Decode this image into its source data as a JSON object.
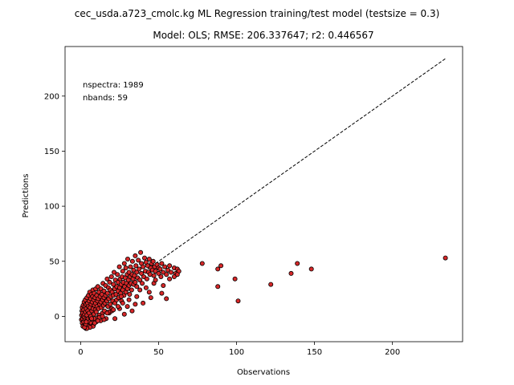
{
  "chart_data": {
    "type": "scatter",
    "suptitle": "cec_usda.a723_cmolc.kg ML Regression training/test model (testsize = 0.3)",
    "title": "Model: OLS; RMSE: 206.337647; r2: 0.446567",
    "xlabel": "Observations",
    "ylabel": "Predictions",
    "xlim": [
      -10,
      245
    ],
    "ylim": [
      -23,
      245
    ],
    "x_ticks": [
      0,
      50,
      100,
      150,
      200
    ],
    "y_ticks": [
      0,
      50,
      100,
      150,
      200
    ],
    "annotations": [
      "nspectra: 1989",
      "nbands: 59"
    ],
    "reference_line": {
      "from": [
        0,
        0
      ],
      "to": [
        234,
        234
      ],
      "style": "dashed",
      "color": "#000000"
    },
    "marker": {
      "fill": "#d62728",
      "edge": "#000000"
    },
    "grid": false,
    "legend": "none",
    "points": [
      [
        0.5,
        -3
      ],
      [
        0.6,
        1
      ],
      [
        0.8,
        5
      ],
      [
        1,
        -6
      ],
      [
        1,
        8
      ],
      [
        1.2,
        -2
      ],
      [
        1.3,
        3
      ],
      [
        1.5,
        -9
      ],
      [
        1.6,
        10
      ],
      [
        1.8,
        0
      ],
      [
        2,
        -5
      ],
      [
        2,
        6
      ],
      [
        2.2,
        13
      ],
      [
        2.4,
        -1
      ],
      [
        2.5,
        2
      ],
      [
        2.7,
        -8
      ],
      [
        2.8,
        9
      ],
      [
        3,
        15
      ],
      [
        3,
        -3
      ],
      [
        3.2,
        4
      ],
      [
        3.4,
        -11
      ],
      [
        3.5,
        11
      ],
      [
        3.6,
        7
      ],
      [
        3.8,
        -4
      ],
      [
        4,
        1
      ],
      [
        4,
        17
      ],
      [
        4.2,
        -7
      ],
      [
        4.4,
        12
      ],
      [
        4.6,
        5
      ],
      [
        4.8,
        -2
      ],
      [
        5,
        19
      ],
      [
        5,
        9
      ],
      [
        5.2,
        -9
      ],
      [
        5.4,
        3
      ],
      [
        5.5,
        14
      ],
      [
        5.7,
        -5
      ],
      [
        5.8,
        22
      ],
      [
        6,
        8
      ],
      [
        6.2,
        -1
      ],
      [
        6.4,
        16
      ],
      [
        6.5,
        0
      ],
      [
        6.7,
        11
      ],
      [
        6.8,
        -6
      ],
      [
        7,
        20
      ],
      [
        7.2,
        5
      ],
      [
        7.4,
        13
      ],
      [
        7.5,
        -3
      ],
      [
        7.7,
        18
      ],
      [
        7.8,
        24
      ],
      [
        8,
        7
      ],
      [
        8.2,
        -8
      ],
      [
        8.4,
        15
      ],
      [
        8.5,
        2
      ],
      [
        8.7,
        21
      ],
      [
        8.8,
        10
      ],
      [
        9,
        -2
      ],
      [
        9.2,
        17
      ],
      [
        9.4,
        6
      ],
      [
        9.5,
        12
      ],
      [
        9.7,
        25
      ],
      [
        10,
        4
      ],
      [
        10,
        -5
      ],
      [
        10.3,
        19
      ],
      [
        10.5,
        9
      ],
      [
        10.8,
        14
      ],
      [
        11,
        -1
      ],
      [
        11,
        27
      ],
      [
        11.3,
        16
      ],
      [
        11.5,
        7
      ],
      [
        11.8,
        22
      ],
      [
        12,
        1
      ],
      [
        12.2,
        11
      ],
      [
        12.5,
        18
      ],
      [
        12.8,
        -4
      ],
      [
        13,
        13
      ],
      [
        13,
        25
      ],
      [
        13.3,
        8
      ],
      [
        13.6,
        20
      ],
      [
        14,
        15
      ],
      [
        14,
        3
      ],
      [
        14.3,
        30
      ],
      [
        14.6,
        10
      ],
      [
        15,
        23
      ],
      [
        15,
        17
      ],
      [
        15.3,
        5
      ],
      [
        15.6,
        12
      ],
      [
        16,
        28
      ],
      [
        16,
        19
      ],
      [
        16.4,
        -2
      ],
      [
        16.8,
        14
      ],
      [
        17,
        34
      ],
      [
        17.2,
        21
      ],
      [
        17.5,
        9
      ],
      [
        17.8,
        26
      ],
      [
        18,
        16
      ],
      [
        18.3,
        3
      ],
      [
        18.6,
        31
      ],
      [
        19,
        11
      ],
      [
        19,
        24
      ],
      [
        19.4,
        18
      ],
      [
        19.8,
        36
      ],
      [
        20,
        7
      ],
      [
        20.2,
        22
      ],
      [
        20.6,
        14
      ],
      [
        21,
        29
      ],
      [
        21,
        19
      ],
      [
        21.4,
        40
      ],
      [
        21.8,
        25
      ],
      [
        22,
        12
      ],
      [
        22.3,
        33
      ],
      [
        22.7,
        20
      ],
      [
        23,
        15
      ],
      [
        23.2,
        27
      ],
      [
        23.6,
        38
      ],
      [
        24,
        23
      ],
      [
        24,
        31
      ],
      [
        24.4,
        17
      ],
      [
        24.8,
        45
      ],
      [
        25,
        26
      ],
      [
        25.3,
        34
      ],
      [
        25.7,
        21
      ],
      [
        26,
        29
      ],
      [
        26.2,
        14
      ],
      [
        26.6,
        36
      ],
      [
        27,
        24
      ],
      [
        27,
        41
      ],
      [
        27.4,
        31
      ],
      [
        27.8,
        19
      ],
      [
        28,
        48
      ],
      [
        28.2,
        27
      ],
      [
        28.6,
        35
      ],
      [
        29,
        22
      ],
      [
        29,
        44
      ],
      [
        29.4,
        30
      ],
      [
        29.8,
        38
      ],
      [
        30,
        25
      ],
      [
        30.2,
        52
      ],
      [
        30.6,
        33
      ],
      [
        31,
        28
      ],
      [
        31,
        40
      ],
      [
        31.4,
        20
      ],
      [
        31.8,
        36
      ],
      [
        32,
        45
      ],
      [
        32.3,
        30
      ],
      [
        32.7,
        24
      ],
      [
        33,
        38
      ],
      [
        33.2,
        50
      ],
      [
        33.6,
        34
      ],
      [
        34,
        29
      ],
      [
        34,
        42
      ],
      [
        34.5,
        37
      ],
      [
        35,
        55
      ],
      [
        35,
        31
      ],
      [
        35.5,
        46
      ],
      [
        36,
        40
      ],
      [
        36,
        27
      ],
      [
        36.5,
        35
      ],
      [
        37,
        51
      ],
      [
        37.5,
        43
      ],
      [
        38,
        33
      ],
      [
        38.5,
        58
      ],
      [
        39,
        39
      ],
      [
        39,
        48
      ],
      [
        39.5,
        30
      ],
      [
        40,
        45
      ],
      [
        40.5,
        36
      ],
      [
        41,
        53
      ],
      [
        41.5,
        41
      ],
      [
        42,
        49
      ],
      [
        42.5,
        34
      ],
      [
        43,
        46
      ],
      [
        43.5,
        40
      ],
      [
        44,
        52
      ],
      [
        44.5,
        38
      ],
      [
        45,
        44
      ],
      [
        45.5,
        48
      ],
      [
        46,
        42
      ],
      [
        46.5,
        50
      ],
      [
        47,
        37
      ],
      [
        47.5,
        45
      ],
      [
        48,
        41
      ],
      [
        49,
        47
      ],
      [
        50,
        39
      ],
      [
        50,
        44
      ],
      [
        51,
        43
      ],
      [
        51.5,
        36
      ],
      [
        52,
        48
      ],
      [
        53,
        40
      ],
      [
        54,
        45
      ],
      [
        55,
        38
      ],
      [
        56,
        42
      ],
      [
        57,
        46
      ],
      [
        58,
        40
      ],
      [
        60,
        44
      ],
      [
        61,
        39
      ],
      [
        62,
        43
      ],
      [
        63,
        41
      ],
      [
        35,
        11
      ],
      [
        45,
        17
      ],
      [
        52,
        21
      ],
      [
        55,
        16
      ],
      [
        40,
        12
      ],
      [
        30,
        9
      ],
      [
        25,
        7
      ],
      [
        20,
        5
      ],
      [
        18,
        4
      ],
      [
        12,
        -1
      ],
      [
        8,
        -9
      ],
      [
        6,
        -10
      ],
      [
        4,
        -11
      ],
      [
        2.5,
        -10
      ],
      [
        3.3,
        -7
      ],
      [
        9,
        -6
      ],
      [
        15,
        -3
      ],
      [
        22,
        -2
      ],
      [
        28,
        2
      ],
      [
        33,
        5
      ],
      [
        36,
        18
      ],
      [
        42,
        26
      ],
      [
        47,
        30
      ],
      [
        44,
        22
      ],
      [
        38,
        24
      ],
      [
        31,
        15
      ],
      [
        27,
        12
      ],
      [
        24,
        9
      ],
      [
        21,
        6
      ],
      [
        17,
        3
      ],
      [
        60,
        36
      ],
      [
        62,
        38
      ],
      [
        57,
        34
      ],
      [
        48,
        33
      ],
      [
        53,
        28
      ],
      [
        26,
        18
      ],
      [
        14,
        0
      ],
      [
        11,
        -4
      ],
      [
        7,
        -2
      ],
      [
        3.6,
        -5
      ],
      [
        78,
        48
      ],
      [
        88,
        43
      ],
      [
        90,
        46
      ],
      [
        88,
        27
      ],
      [
        99,
        34
      ],
      [
        101,
        14
      ],
      [
        122,
        29
      ],
      [
        135,
        39
      ],
      [
        139,
        48
      ],
      [
        148,
        43
      ],
      [
        234,
        53
      ]
    ]
  }
}
